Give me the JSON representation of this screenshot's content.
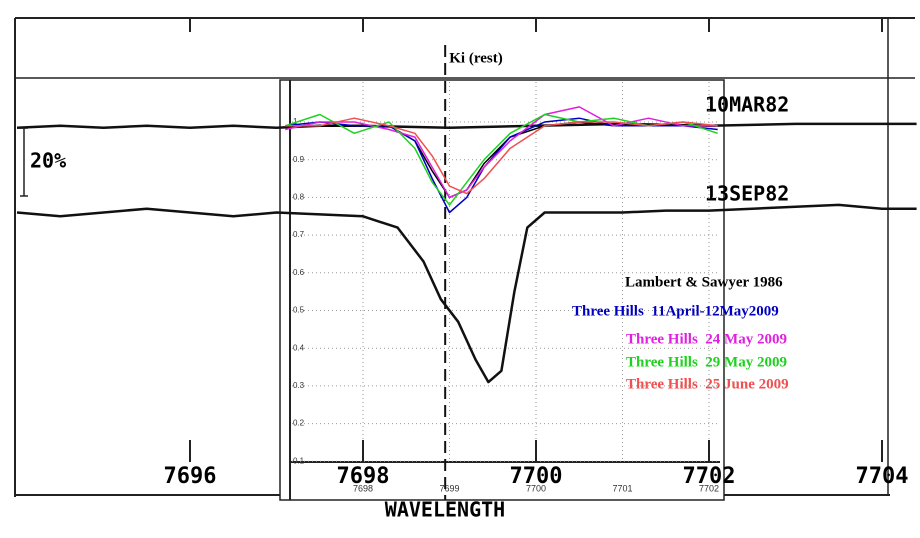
{
  "chart_data": {
    "type": "line",
    "x_label": "WAVELENGTH",
    "annotations": {
      "rest_label": "Ki (rest)",
      "rest_x": 7698.95,
      "scale": "20%",
      "epoch1": "10MAR82",
      "epoch2": "13SEP82"
    },
    "xlim": [
      7694,
      7704.4
    ],
    "ylim": [
      0,
      1.12
    ],
    "xticks": [
      7696,
      7698,
      7700,
      7702,
      7704
    ],
    "inset_xticks": [
      7698,
      7699,
      7700,
      7701,
      7702
    ],
    "yticks": [
      0.1,
      0.2,
      0.3,
      0.4,
      0.5,
      0.6,
      0.7,
      0.8,
      0.9,
      1
    ],
    "grid": true,
    "series": [
      {
        "name": "10MAR82",
        "color": "#111111",
        "x": [
          7694,
          7694.5,
          7695,
          7695.5,
          7696,
          7696.5,
          7697,
          7697.5,
          7698,
          7699,
          7700,
          7701,
          7702,
          7703,
          7704.4
        ],
        "values": [
          0.985,
          0.99,
          0.985,
          0.99,
          0.985,
          0.99,
          0.985,
          0.99,
          0.99,
          0.985,
          0.99,
          0.995,
          0.99,
          0.995,
          0.995
        ]
      },
      {
        "name": "13SEP82",
        "color": "#111111",
        "x": [
          7694,
          7694.5,
          7695,
          7695.5,
          7696,
          7696.5,
          7697,
          7697.5,
          7698,
          7698.4,
          7698.7,
          7698.9,
          7699.1,
          7699.3,
          7699.45,
          7699.6,
          7699.75,
          7699.9,
          7700.1,
          7700.5,
          7701,
          7701.5,
          7702,
          7702.5,
          7703,
          7703.5,
          7704,
          7704.4
        ],
        "values": [
          0.76,
          0.75,
          0.76,
          0.77,
          0.76,
          0.75,
          0.76,
          0.755,
          0.75,
          0.72,
          0.63,
          0.53,
          0.47,
          0.37,
          0.31,
          0.34,
          0.55,
          0.72,
          0.76,
          0.76,
          0.76,
          0.765,
          0.765,
          0.77,
          0.775,
          0.78,
          0.77,
          0.77
        ]
      },
      {
        "name": "Lambert & Sawyer 1986",
        "color": "#000000",
        "x": [
          7697.1,
          7697.5,
          7697.9,
          7698.3,
          7698.6,
          7698.8,
          7699.0,
          7699.2,
          7699.4,
          7699.7,
          7700.1,
          7700.5,
          7700.9,
          7701.3,
          7701.7,
          7702.1
        ],
        "values": [
          0.99,
          0.99,
          0.99,
          0.99,
          0.95,
          0.87,
          0.8,
          0.82,
          0.89,
          0.96,
          0.99,
          1.0,
          0.99,
          0.99,
          0.99,
          0.99
        ]
      },
      {
        "name": "Three Hills  11April-12May2009",
        "color": "#0000c0",
        "x": [
          7697.1,
          7697.5,
          7697.9,
          7698.3,
          7698.6,
          7698.8,
          7699.0,
          7699.2,
          7699.4,
          7699.7,
          7700.1,
          7700.5,
          7700.9,
          7701.3,
          7701.7,
          7702.1
        ],
        "values": [
          0.99,
          1.0,
          0.99,
          0.99,
          0.95,
          0.85,
          0.76,
          0.8,
          0.88,
          0.96,
          1.0,
          1.01,
          0.99,
          0.99,
          0.99,
          0.98
        ]
      },
      {
        "name": "Three Hills  24 May 2009",
        "color": "#e020e0",
        "x": [
          7697.1,
          7697.5,
          7697.9,
          7698.3,
          7698.6,
          7698.8,
          7699.0,
          7699.2,
          7699.4,
          7699.7,
          7700.1,
          7700.5,
          7700.9,
          7701.3,
          7701.7,
          7702.1
        ],
        "values": [
          0.98,
          1.0,
          1.0,
          0.98,
          0.96,
          0.88,
          0.8,
          0.82,
          0.88,
          0.95,
          1.02,
          1.04,
          0.99,
          1.01,
          0.99,
          0.99
        ]
      },
      {
        "name": "Three Hills  29 May 2009",
        "color": "#20d020",
        "x": [
          7697.1,
          7697.5,
          7697.9,
          7698.3,
          7698.6,
          7698.8,
          7699.0,
          7699.2,
          7699.4,
          7699.7,
          7700.1,
          7700.5,
          7700.9,
          7701.3,
          7701.7,
          7702.1
        ],
        "values": [
          0.99,
          1.02,
          0.97,
          1.0,
          0.93,
          0.84,
          0.78,
          0.84,
          0.9,
          0.97,
          1.02,
          1.0,
          1.01,
          0.99,
          1.0,
          0.97
        ]
      },
      {
        "name": "Three Hills  25 June 2009",
        "color": "#f05050",
        "x": [
          7697.1,
          7697.5,
          7697.9,
          7698.3,
          7698.6,
          7698.8,
          7699.0,
          7699.2,
          7699.4,
          7699.7,
          7700.1,
          7700.5,
          7700.9,
          7701.3,
          7701.7,
          7702.1
        ],
        "values": [
          0.99,
          0.99,
          1.01,
          0.99,
          0.97,
          0.91,
          0.83,
          0.81,
          0.85,
          0.93,
          0.99,
          1.0,
          1.0,
          0.99,
          1.0,
          0.99
        ]
      }
    ]
  }
}
